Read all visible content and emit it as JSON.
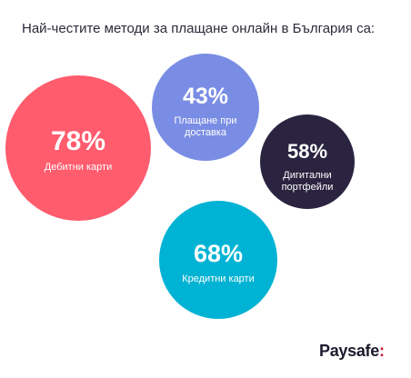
{
  "chart_data": {
    "type": "bubble",
    "title": "Най-честите методи за плащане онлайн в България са:",
    "items": [
      {
        "value": "78%",
        "label": [
          "Дебитни карти"
        ],
        "color": "#ff5c6e"
      },
      {
        "value": "43%",
        "label": [
          "Плащане при",
          "доставка"
        ],
        "color": "#7a8de4"
      },
      {
        "value": "58%",
        "label": [
          "Дигитални",
          "портфейли"
        ],
        "color": "#2b2440"
      },
      {
        "value": "68%",
        "label": [
          "Кредитни карти"
        ],
        "color": "#00b3d4"
      }
    ]
  },
  "brand": {
    "name": "Paysafe",
    "suffix": ":"
  }
}
